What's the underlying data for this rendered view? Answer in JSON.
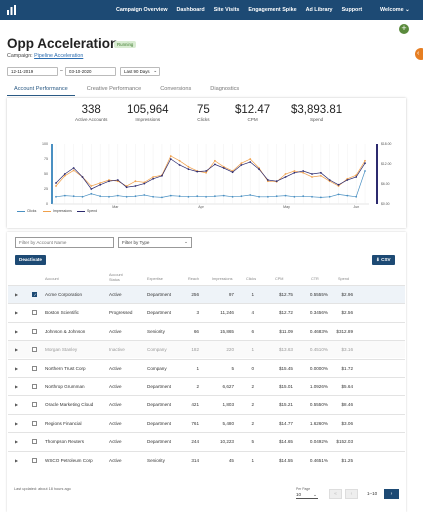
{
  "nav": {
    "items": [
      "Campaign Overview",
      "Dashboard",
      "Site Visits",
      "Engagement Spike",
      "Ad Library",
      "Support"
    ],
    "welcome": "Welcome"
  },
  "header": {
    "title": "Opp Acceleration",
    "status": "Running",
    "campaign_label": "Campaign:",
    "campaign_name": "Pipeline Acceleration"
  },
  "filters": {
    "start_date": "12-11-2019",
    "end_date": "03-10-2020",
    "date_sep": "–",
    "range": "Last 90 Days"
  },
  "tabs": [
    "Account Performance",
    "Creative Performance",
    "Conversions",
    "Diagnostics"
  ],
  "kpis": [
    {
      "value": "338",
      "label": "Active Accounts"
    },
    {
      "value": "105,964",
      "label": "Impressions"
    },
    {
      "value": "75",
      "label": "Clicks"
    },
    {
      "value": "$12.47",
      "label": "CPM"
    },
    {
      "value": "$3,893.81",
      "label": "Spend"
    }
  ],
  "chart_data": {
    "type": "line",
    "left_axis": {
      "ticks": [
        "100",
        "75",
        "50",
        "25",
        "0"
      ],
      "ylim": [
        0,
        100
      ]
    },
    "right_axis": {
      "ticks": [
        "$18.00",
        "$12.00",
        "$6.00",
        "$0.00"
      ]
    },
    "x_ticks": [
      "Mar",
      "Apr",
      "May",
      "Jun"
    ],
    "series": [
      {
        "name": "Clicks",
        "color": "#4a90c2",
        "values": [
          12,
          14,
          13,
          12,
          17,
          13,
          12,
          14,
          12,
          13,
          15,
          12,
          11,
          14,
          13,
          12,
          13,
          12,
          13,
          14,
          12,
          13,
          15,
          12,
          12,
          13,
          14,
          12,
          13,
          12,
          11,
          12,
          16,
          14,
          12,
          55
        ]
      },
      {
        "name": "Impressions",
        "color": "#f0a04b",
        "values": [
          30,
          47,
          56,
          45,
          30,
          35,
          40,
          38,
          30,
          38,
          36,
          45,
          48,
          80,
          72,
          62,
          55,
          52,
          72,
          62,
          55,
          68,
          75,
          60,
          38,
          37,
          50,
          55,
          52,
          45,
          47,
          38,
          30,
          42,
          48,
          72
        ]
      },
      {
        "name": "Spend",
        "color": "#2c2a6e",
        "values": [
          35,
          50,
          60,
          45,
          25,
          32,
          38,
          40,
          28,
          30,
          34,
          42,
          47,
          75,
          65,
          58,
          54,
          55,
          66,
          60,
          53,
          65,
          70,
          58,
          40,
          38,
          45,
          52,
          55,
          50,
          52,
          40,
          32,
          40,
          45,
          68
        ]
      }
    ]
  },
  "table": {
    "search_placeholder": "Filter by Account Name",
    "type_filter": "Filter by Type",
    "deactivate": "Deactivate",
    "csv": "CSV",
    "columns": [
      "Account",
      "Account Status",
      "Expertise",
      "Reach",
      "Impressions",
      "Clicks",
      "CPM",
      "CTR",
      "Spend"
    ],
    "rows": [
      {
        "checked": true,
        "disabled": false,
        "cells": [
          "Acme Corporation",
          "Active",
          "Department",
          "256",
          "97",
          "1",
          "$12.75",
          "0.5555%",
          "$2.96"
        ]
      },
      {
        "checked": false,
        "disabled": false,
        "cells": [
          "Boston Scientific",
          "Progressed",
          "Department",
          "3",
          "11,246",
          "4",
          "$12.72",
          "0.3456%",
          "$2.56"
        ]
      },
      {
        "checked": false,
        "disabled": false,
        "cells": [
          "Johnson & Johnson",
          "Active",
          "Seniority",
          "66",
          "15,865",
          "6",
          "$11.09",
          "0.4683%",
          "$312.89"
        ]
      },
      {
        "checked": false,
        "disabled": true,
        "cells": [
          "Morgan Stanley",
          "Inactive",
          "Company",
          "182",
          "220",
          "1",
          "$13.63",
          "0.4510%",
          "$3.16"
        ]
      },
      {
        "checked": false,
        "disabled": false,
        "cells": [
          "Northern Trust Corp",
          "Active",
          "Company",
          "1",
          "5",
          "0",
          "$15.45",
          "0.0000%",
          "$1.72"
        ]
      },
      {
        "checked": false,
        "disabled": false,
        "cells": [
          "Northrop Grumman",
          "Active",
          "Department",
          "2",
          "6,627",
          "2",
          "$15.01",
          "1.0926%",
          "$5.64"
        ]
      },
      {
        "checked": false,
        "disabled": false,
        "cells": [
          "Oracle Marketing Cloud",
          "Active",
          "Department",
          "421",
          "1,803",
          "2",
          "$15.21",
          "0.5550%",
          "$8.46"
        ]
      },
      {
        "checked": false,
        "disabled": false,
        "cells": [
          "Regions Financial",
          "Active",
          "Department",
          "761",
          "5,480",
          "2",
          "$14.77",
          "1.6260%",
          "$3.06"
        ]
      },
      {
        "checked": false,
        "disabled": false,
        "cells": [
          "Thompson Reuters",
          "Active",
          "Department",
          "244",
          "10,223",
          "5",
          "$14.65",
          "0.0492%",
          "$152.03"
        ]
      },
      {
        "checked": false,
        "disabled": false,
        "cells": [
          "WSCO Petroleum Corp",
          "Active",
          "Seniority",
          "314",
          "45",
          "1",
          "$14.55",
          "0.4651%",
          "$1.25"
        ]
      }
    ]
  },
  "footer": {
    "updated": "Last updated: about 18 hours ago",
    "per_page_label": "Per Page",
    "per_page": "10",
    "range": "1–10",
    "icons": {
      "prev": "chevron-left-icon",
      "next": "chevron-right-icon",
      "first": "double-chevron-left-icon"
    }
  }
}
